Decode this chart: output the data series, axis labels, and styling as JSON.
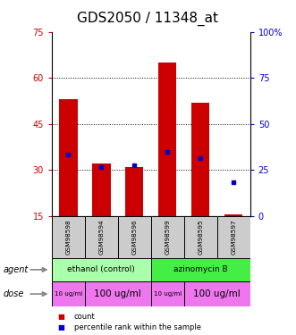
{
  "title": "GDS2050 / 11348_at",
  "samples": [
    "GSM98598",
    "GSM98594",
    "GSM98596",
    "GSM98599",
    "GSM98595",
    "GSM98597"
  ],
  "bar_bottoms": [
    15,
    15,
    15,
    15,
    15,
    15
  ],
  "bar_tops": [
    53,
    32,
    31,
    65,
    52,
    15.5
  ],
  "blue_values": [
    35,
    31,
    31.5,
    36,
    34,
    26
  ],
  "ylim_left": [
    15,
    75
  ],
  "ylim_right": [
    0,
    100
  ],
  "yticks_left": [
    15,
    30,
    45,
    60,
    75
  ],
  "yticks_right": [
    0,
    25,
    50,
    75,
    100
  ],
  "grid_values": [
    30,
    45,
    60
  ],
  "bar_color": "#cc0000",
  "blue_color": "#0000cc",
  "agent_groups": [
    {
      "label": "ethanol (control)",
      "span": [
        0,
        3
      ],
      "color": "#aaffaa"
    },
    {
      "label": "azinomycin B",
      "span": [
        3,
        6
      ],
      "color": "#44ee44"
    }
  ],
  "dose_groups": [
    {
      "label": "10 ug/ml",
      "span": [
        0,
        1
      ],
      "fontsize": 5
    },
    {
      "label": "100 ug/ml",
      "span": [
        1,
        3
      ],
      "fontsize": 7.5
    },
    {
      "label": "10 ug/ml",
      "span": [
        3,
        4
      ],
      "fontsize": 5
    },
    {
      "label": "100 ug/ml",
      "span": [
        4,
        6
      ],
      "fontsize": 7.5
    }
  ],
  "dose_color": "#ee77ee",
  "sample_bg_color": "#cccccc",
  "legend_count_color": "#cc0000",
  "legend_pct_color": "#0000cc",
  "title_fontsize": 11,
  "ylabel_left_fontsize": 8,
  "ylabel_right_fontsize": 8
}
